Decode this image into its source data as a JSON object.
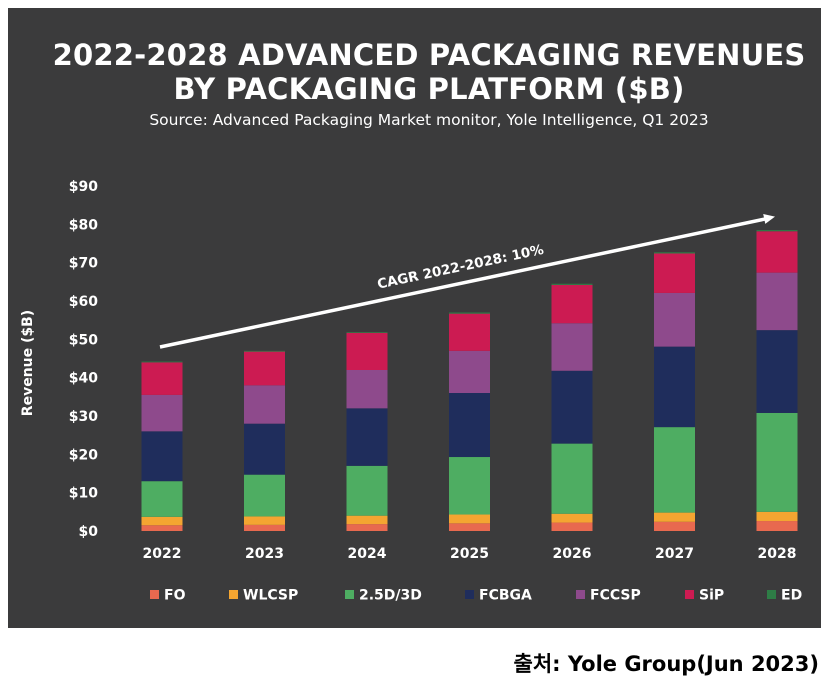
{
  "chart_data": {
    "type": "bar",
    "stacked": true,
    "title_lines": [
      "2022-2028 ADVANCED PACKAGING REVENUES",
      "BY PACKAGING PLATFORM ($B)"
    ],
    "subtitle": "Source: Advanced Packaging Market monitor, Yole Intelligence, Q1 2023",
    "ylabel": "Revenue ($B)",
    "xlabel": "",
    "ylim": [
      0,
      90
    ],
    "ytick_values": [
      0,
      10,
      20,
      30,
      40,
      50,
      60,
      70,
      80,
      90
    ],
    "ytick_labels": [
      "$0",
      "$10",
      "$20",
      "$30",
      "$40",
      "$50",
      "$60",
      "$70",
      "$80",
      "$90"
    ],
    "categories": [
      "2022",
      "2023",
      "2024",
      "2025",
      "2026",
      "2027",
      "2028"
    ],
    "series": [
      {
        "name": "FO",
        "color": "#e8694f",
        "values": [
          1.5,
          1.6,
          1.8,
          2.0,
          2.2,
          2.4,
          2.6
        ]
      },
      {
        "name": "WLCSP",
        "color": "#f4a531",
        "values": [
          2.2,
          2.2,
          2.2,
          2.3,
          2.3,
          2.4,
          2.4
        ]
      },
      {
        "name": "2.5D/3D",
        "color": "#4ead62",
        "values": [
          9.3,
          10.9,
          13.0,
          15.0,
          18.3,
          22.3,
          25.8
        ]
      },
      {
        "name": "FCBGA",
        "color": "#1f2d5c",
        "values": [
          13.0,
          13.3,
          15.0,
          16.7,
          19.0,
          21.0,
          21.6
        ]
      },
      {
        "name": "FCCSP",
        "color": "#8e4a8c",
        "values": [
          9.5,
          10.0,
          10.0,
          11.0,
          12.4,
          14.0,
          15.0
        ]
      },
      {
        "name": "SiP",
        "color": "#cc1b52",
        "values": [
          8.5,
          8.8,
          9.7,
          9.7,
          10.0,
          10.3,
          10.8
        ]
      },
      {
        "name": "ED",
        "color": "#2e7d46",
        "values": [
          0.2,
          0.2,
          0.2,
          0.3,
          0.3,
          0.3,
          0.3
        ]
      }
    ],
    "annotation": {
      "text": "CAGR 2022-2028: 10%",
      "from": [
        "2022",
        48
      ],
      "to": [
        "2028",
        82
      ]
    },
    "legend_position": "bottom",
    "grid": false
  },
  "footer": {
    "source_caption": "출처: Yole Group(Jun 2023)"
  }
}
